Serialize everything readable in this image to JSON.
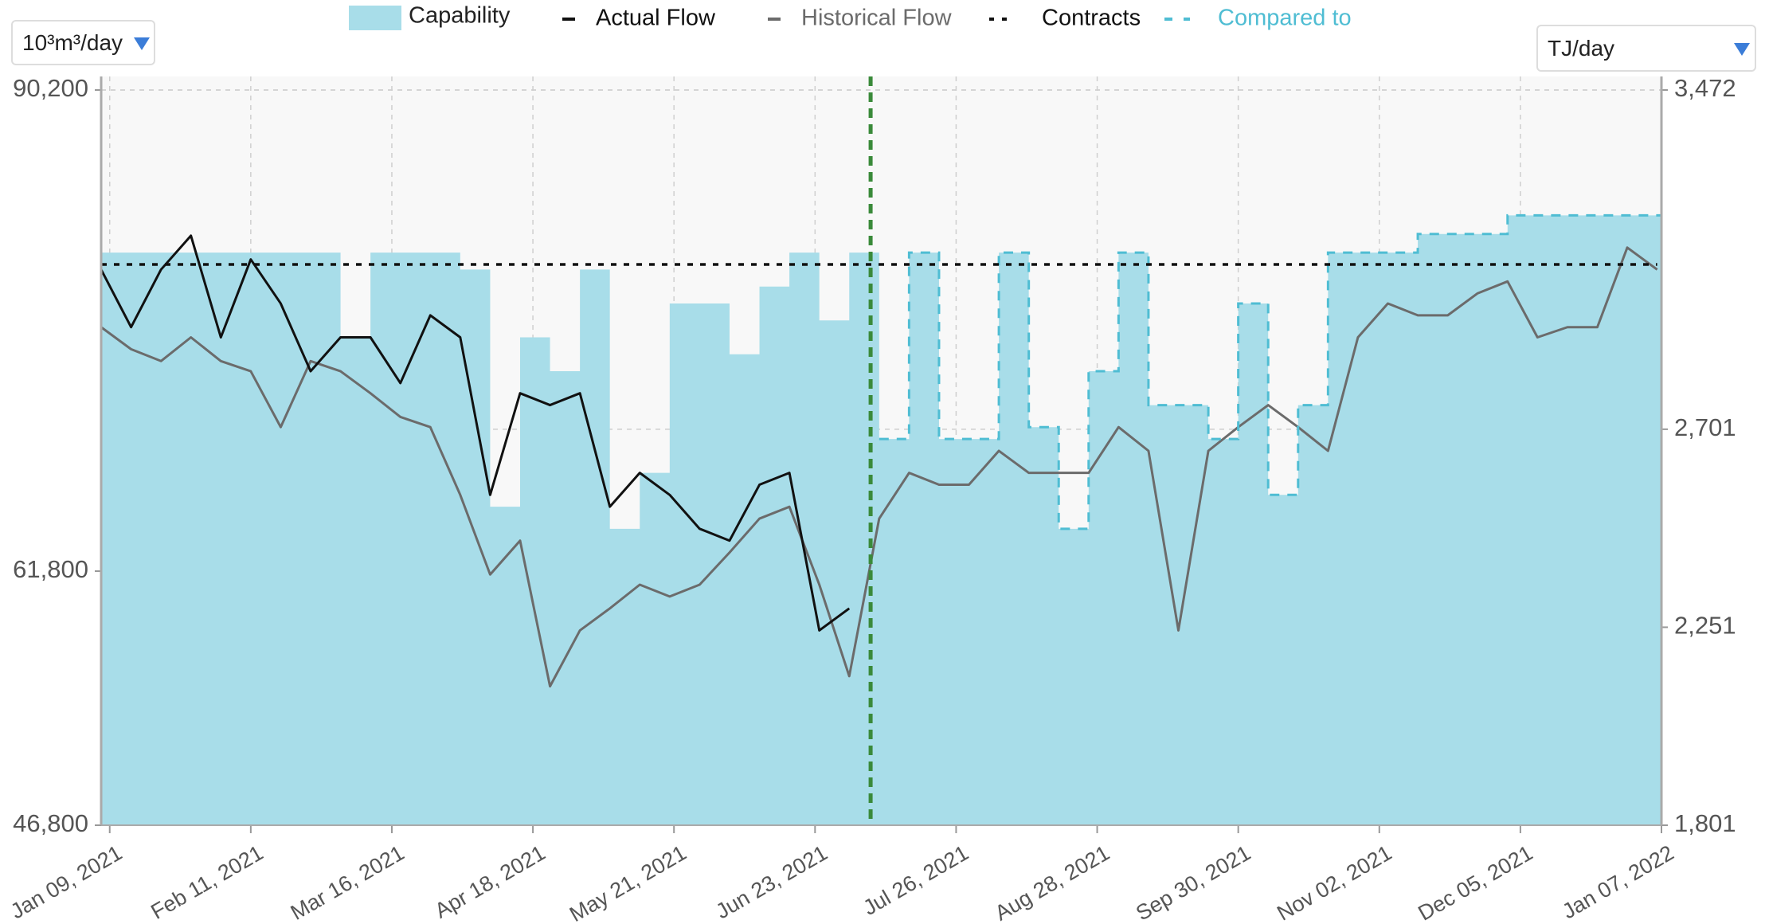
{
  "chart_data": {
    "type": "line",
    "left_unit": "10³m³/day",
    "right_unit": "TJ/day",
    "x": [
      "2021-01-07",
      "2021-01-14",
      "2021-01-21",
      "2021-01-28",
      "2021-02-04",
      "2021-02-11",
      "2021-02-18",
      "2021-02-25",
      "2021-03-04",
      "2021-03-11",
      "2021-03-18",
      "2021-03-25",
      "2021-04-01",
      "2021-04-08",
      "2021-04-15",
      "2021-04-22",
      "2021-04-29",
      "2021-05-06",
      "2021-05-13",
      "2021-05-20",
      "2021-05-27",
      "2021-06-03",
      "2021-06-10",
      "2021-06-17",
      "2021-06-24",
      "2021-07-01",
      "2021-07-08",
      "2021-07-15",
      "2021-07-22",
      "2021-07-29",
      "2021-08-05",
      "2021-08-12",
      "2021-08-19",
      "2021-08-26",
      "2021-09-02",
      "2021-09-09",
      "2021-09-16",
      "2021-09-23",
      "2021-09-30",
      "2021-10-07",
      "2021-10-14",
      "2021-10-21",
      "2021-10-28",
      "2021-11-04",
      "2021-11-11",
      "2021-11-18",
      "2021-11-25",
      "2021-12-02",
      "2021-12-09",
      "2021-12-16",
      "2021-12-23",
      "2021-12-30",
      "2022-01-06"
    ],
    "xlim": [
      "2021-01-07",
      "2022-01-07"
    ],
    "xticks": [
      {
        "value": "2021-01-09",
        "label": "Jan 09, 2021"
      },
      {
        "value": "2021-02-11",
        "label": "Feb 11, 2021"
      },
      {
        "value": "2021-03-16",
        "label": "Mar 16, 2021"
      },
      {
        "value": "2021-04-18",
        "label": "Apr 18, 2021"
      },
      {
        "value": "2021-05-21",
        "label": "May 21, 2021"
      },
      {
        "value": "2021-06-23",
        "label": "Jun 23, 2021"
      },
      {
        "value": "2021-07-26",
        "label": "Jul 26, 2021"
      },
      {
        "value": "2021-08-28",
        "label": "Aug 28, 2021"
      },
      {
        "value": "2021-09-30",
        "label": "Sep 30, 2021"
      },
      {
        "value": "2021-11-02",
        "label": "Nov 02, 2021"
      },
      {
        "value": "2021-12-05",
        "label": "Dec 05, 2021"
      },
      {
        "value": "2022-01-07",
        "label": "Jan 07, 2022"
      }
    ],
    "ylim": [
      46800,
      90200
    ],
    "yticks": [
      {
        "value": 46800,
        "label": "46,800"
      },
      {
        "value": 61800,
        "label": "61,800"
      },
      {
        "value": 90200,
        "label": "90,200"
      }
    ],
    "y2lim": [
      1801,
      3472
    ],
    "y2ticks": [
      {
        "value": 1801,
        "label": "1,801"
      },
      {
        "value": 2251,
        "label": "2,251"
      },
      {
        "value": 2701,
        "label": "2,701"
      },
      {
        "value": 3472,
        "label": "3,472"
      }
    ],
    "grid": true,
    "reference_line": {
      "x": "2021-07-06",
      "color": "#3a8a3a"
    },
    "series": [
      {
        "name": "Capability",
        "color": "#a8dde9",
        "style": "area",
        "values": [
          80600,
          80600,
          80600,
          80600,
          80600,
          80600,
          80600,
          80600,
          75600,
          80600,
          80600,
          80600,
          79600,
          65600,
          75600,
          73600,
          79600,
          64300,
          67600,
          77600,
          77600,
          74600,
          78600,
          80600,
          76600,
          80600,
          69600,
          80600,
          69600,
          69600,
          80600,
          70300,
          64300,
          73600,
          80600,
          71600,
          71600,
          69600,
          77600,
          66300,
          71600,
          80600,
          80600,
          80600,
          81700,
          81700,
          81700,
          82800,
          82800,
          82800,
          82800,
          82800,
          82800
        ]
      },
      {
        "name": "Actual Flow",
        "color": "#111111",
        "style": "solid",
        "values": [
          79600,
          76200,
          79600,
          81600,
          75600,
          80200,
          77600,
          73600,
          75600,
          75600,
          72900,
          76900,
          75600,
          66300,
          72300,
          71600,
          72300,
          65600,
          67600,
          66300,
          64300,
          63600,
          66900,
          67600,
          58300,
          59600,
          null,
          null,
          null,
          null,
          null,
          null,
          null,
          null,
          null,
          null,
          null,
          null,
          null,
          null,
          null,
          null,
          null,
          null,
          null,
          null,
          null,
          null,
          null,
          null,
          null,
          null,
          null
        ]
      },
      {
        "name": "Historical Flow",
        "color": "#6b6b6b",
        "style": "solid",
        "values": [
          76200,
          74900,
          74200,
          75600,
          74200,
          73600,
          70300,
          74200,
          73600,
          72300,
          70900,
          70300,
          66300,
          61600,
          63600,
          55000,
          58300,
          59600,
          61000,
          60300,
          61000,
          62900,
          64900,
          65600,
          61000,
          55600,
          64900,
          67600,
          66900,
          66900,
          68900,
          67600,
          67600,
          67600,
          70300,
          68900,
          58300,
          68900,
          70300,
          71600,
          70300,
          68900,
          75600,
          77600,
          76900,
          76900,
          78200,
          78900,
          75600,
          76200,
          76200,
          80900,
          79600
        ]
      },
      {
        "name": "Contracts",
        "color": "#111111",
        "style": "dotted",
        "values": [
          79900,
          79900,
          79900,
          79900,
          79900,
          79900,
          79900,
          79900,
          79900,
          79900,
          79900,
          79900,
          79900,
          79900,
          79900,
          79900,
          79900,
          79900,
          79900,
          79900,
          79900,
          79900,
          79900,
          79900,
          79900,
          79900,
          79900,
          79900,
          79900,
          79900,
          79900,
          79900,
          79900,
          79900,
          79900,
          79900,
          79900,
          79900,
          79900,
          79900,
          79900,
          79900,
          79900,
          79900,
          79900,
          79900,
          79900,
          79900,
          79900,
          79900,
          79900,
          79900,
          79900
        ]
      },
      {
        "name": "Compared to",
        "color": "#4fbdd3",
        "style": "dashed",
        "values": [
          null,
          null,
          null,
          null,
          null,
          null,
          null,
          null,
          null,
          null,
          null,
          null,
          null,
          null,
          null,
          null,
          null,
          null,
          null,
          null,
          null,
          null,
          null,
          null,
          null,
          null,
          69600,
          80600,
          69600,
          69600,
          80600,
          70300,
          64300,
          73600,
          80600,
          71600,
          71600,
          69600,
          77600,
          66300,
          71600,
          80600,
          80600,
          80600,
          81700,
          81700,
          81700,
          82800,
          82800,
          82800,
          82800,
          82800,
          82800
        ]
      }
    ]
  }
}
